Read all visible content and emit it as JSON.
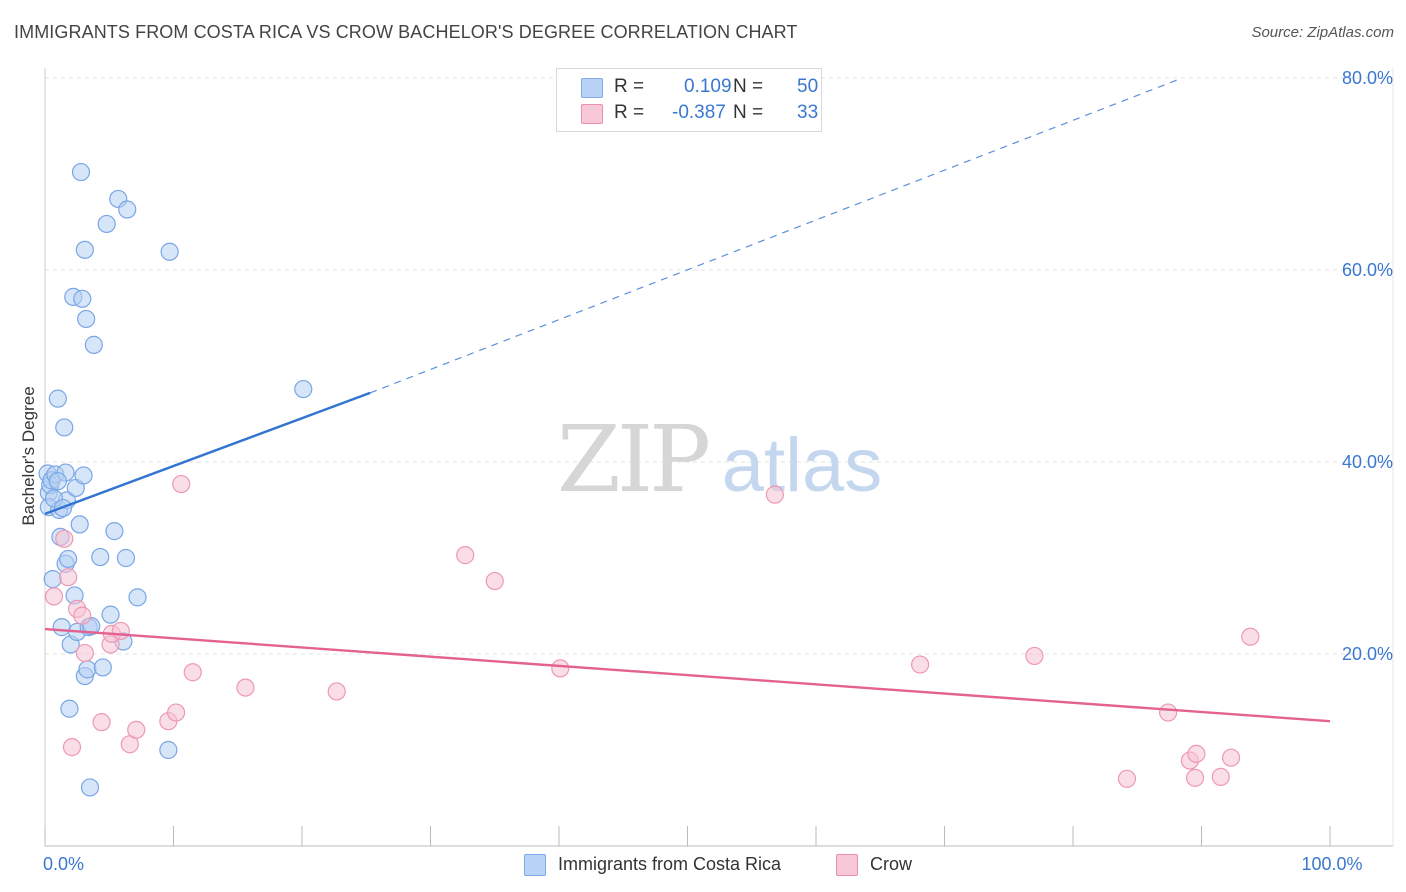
{
  "title": "IMMIGRANTS FROM COSTA RICA VS CROW BACHELOR'S DEGREE CORRELATION CHART",
  "source": "Source: ZipAtlas.com",
  "watermark": {
    "zip": "ZIP",
    "atlas": "atlas"
  },
  "stats": [
    {
      "r_label": "R =",
      "r_value": "0.109",
      "n_label": "N =",
      "n_value": "50",
      "color": "#7ea9e8",
      "fill": "#b9d3f6"
    },
    {
      "r_label": "R =",
      "r_value": "-0.387",
      "n_label": "N =",
      "n_value": "33",
      "color": "#ec8fae",
      "fill": "#f8c8d8"
    }
  ],
  "legend": [
    {
      "label": "Immigrants from Costa Rica"
    },
    {
      "label": "Crow"
    }
  ],
  "colors": {
    "blue_stroke": "#7aa6e6",
    "blue_fill": "#b5cff3",
    "blue_line": "#3274d2",
    "pink_stroke": "#ee98b5",
    "pink_fill": "#f6c3d4",
    "pink_line": "#e4628f",
    "value_text": "#3a78d0",
    "grid": "#e2e2e2"
  },
  "chart_data": {
    "type": "scatter",
    "title": "IMMIGRANTS FROM COSTA RICA VS CROW BACHELOR'S DEGREE CORRELATION CHART",
    "xlabel": "",
    "ylabel": "Bachelor's Degree",
    "xlim": [
      0,
      100
    ],
    "ylim": [
      0,
      80
    ],
    "x_tick_labels": [
      {
        "value": 0,
        "label": "0.0%"
      },
      {
        "value": 100,
        "label": "100.0%"
      }
    ],
    "x_minor_ticks": [
      10,
      20,
      30,
      40,
      50,
      60,
      70,
      80,
      90
    ],
    "y_tick_labels": [
      {
        "value": 20,
        "label": "20.0%"
      },
      {
        "value": 40,
        "label": "40.0%"
      },
      {
        "value": 60,
        "label": "60.0%"
      },
      {
        "value": 80,
        "label": "80.0%"
      }
    ],
    "y_grid": [
      20,
      40,
      60,
      80
    ],
    "series": [
      {
        "name": "Immigrants from Costa Rica",
        "key": "blue",
        "points": [
          [
            0.2,
            38.8
          ],
          [
            0.3,
            36.8
          ],
          [
            0.3,
            35.3
          ],
          [
            0.4,
            37.6
          ],
          [
            0.5,
            38.1
          ],
          [
            0.6,
            27.8
          ],
          [
            0.8,
            38.7
          ],
          [
            1.0,
            46.6
          ],
          [
            1.1,
            35.0
          ],
          [
            1.2,
            32.2
          ],
          [
            1.3,
            22.8
          ],
          [
            1.5,
            43.6
          ],
          [
            1.6,
            38.9
          ],
          [
            1.6,
            29.4
          ],
          [
            1.7,
            36.0
          ],
          [
            1.8,
            29.9
          ],
          [
            1.9,
            14.3
          ],
          [
            2.0,
            21.0
          ],
          [
            2.2,
            57.2
          ],
          [
            2.3,
            26.1
          ],
          [
            2.4,
            37.3
          ],
          [
            2.5,
            22.3
          ],
          [
            2.7,
            33.5
          ],
          [
            2.8,
            70.2
          ],
          [
            2.9,
            57.0
          ],
          [
            3.0,
            38.6
          ],
          [
            3.1,
            62.1
          ],
          [
            3.1,
            17.7
          ],
          [
            3.2,
            54.9
          ],
          [
            3.3,
            18.4
          ],
          [
            3.4,
            22.8
          ],
          [
            3.5,
            6.1
          ],
          [
            3.6,
            22.9
          ],
          [
            3.8,
            52.2
          ],
          [
            4.3,
            30.1
          ],
          [
            4.5,
            18.6
          ],
          [
            4.8,
            64.8
          ],
          [
            5.1,
            24.1
          ],
          [
            5.4,
            32.8
          ],
          [
            5.7,
            67.4
          ],
          [
            6.1,
            21.3
          ],
          [
            6.3,
            30.0
          ],
          [
            6.4,
            66.3
          ],
          [
            7.2,
            25.9
          ],
          [
            9.6,
            10.0
          ],
          [
            9.7,
            61.9
          ],
          [
            20.1,
            47.6
          ],
          [
            1.0,
            38.0
          ],
          [
            0.7,
            36.2
          ],
          [
            1.4,
            35.2
          ]
        ]
      },
      {
        "name": "Crow",
        "key": "pink",
        "points": [
          [
            0.7,
            26.0
          ],
          [
            1.5,
            32.0
          ],
          [
            1.8,
            28.0
          ],
          [
            2.1,
            10.3
          ],
          [
            2.5,
            24.7
          ],
          [
            2.9,
            24.0
          ],
          [
            3.1,
            20.1
          ],
          [
            4.4,
            12.9
          ],
          [
            5.1,
            21.0
          ],
          [
            5.2,
            22.1
          ],
          [
            5.9,
            22.4
          ],
          [
            6.6,
            10.6
          ],
          [
            7.1,
            12.1
          ],
          [
            9.6,
            13.0
          ],
          [
            10.2,
            13.9
          ],
          [
            10.6,
            37.7
          ],
          [
            11.5,
            18.1
          ],
          [
            15.6,
            16.5
          ],
          [
            22.7,
            16.1
          ],
          [
            32.7,
            30.3
          ],
          [
            35.0,
            27.6
          ],
          [
            40.1,
            18.5
          ],
          [
            56.8,
            36.6
          ],
          [
            68.1,
            18.9
          ],
          [
            77.0,
            19.8
          ],
          [
            84.2,
            7.0
          ],
          [
            87.4,
            13.9
          ],
          [
            89.1,
            8.9
          ],
          [
            89.6,
            9.6
          ],
          [
            89.5,
            7.1
          ],
          [
            91.5,
            7.2
          ],
          [
            92.3,
            9.2
          ],
          [
            93.8,
            21.8
          ]
        ]
      }
    ],
    "trend_lines": [
      {
        "series": "Immigrants from Costa Rica",
        "solid": [
          [
            0,
            34.6
          ],
          [
            25.3,
            47.2
          ]
        ],
        "dashed": [
          [
            25.3,
            47.2
          ],
          [
            88.5,
            80.0
          ]
        ]
      },
      {
        "series": "Crow",
        "solid": [
          [
            0,
            22.6
          ],
          [
            100,
            13.0
          ]
        ]
      }
    ],
    "legend_position": "bottom-center",
    "grid": true
  }
}
